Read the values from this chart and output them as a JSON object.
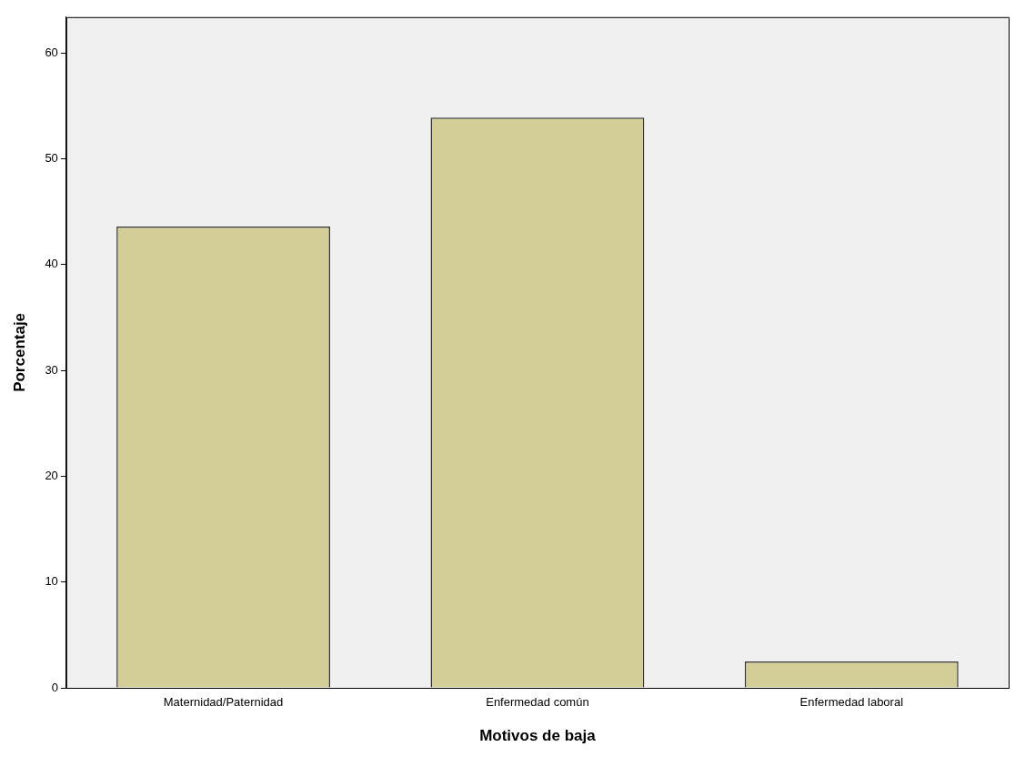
{
  "chart_data": {
    "type": "bar",
    "xlabel": "Motivos de baja",
    "ylabel": "Porcentaje",
    "categories": [
      "Maternidad/Paternidad",
      "Enfermedad común",
      "Enfermedad laboral"
    ],
    "values": [
      43.6,
      53.9,
      2.5
    ],
    "color": "#d3ce97",
    "ylim": [
      0,
      63.4
    ],
    "yticks": [
      0,
      10,
      20,
      30,
      40,
      50,
      60
    ],
    "grid": false,
    "legend": false
  }
}
